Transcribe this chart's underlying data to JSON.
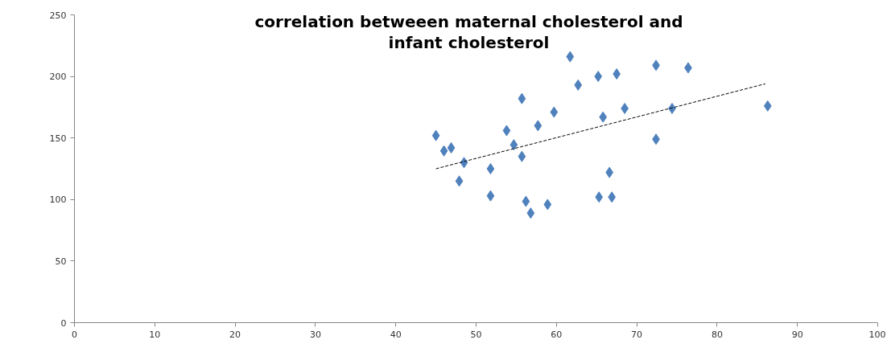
{
  "chart_data": {
    "type": "scatter",
    "title": "correlation betweeen maternal cholesterol and infant cholesterol",
    "grid": false,
    "xlim": [
      0,
      100
    ],
    "xticks": [
      0,
      10,
      20,
      30,
      40,
      50,
      60,
      70,
      80,
      90,
      100
    ],
    "ylim": [
      0,
      250
    ],
    "yticks": [
      0,
      50,
      100,
      150,
      200,
      250
    ],
    "series": [
      {
        "color": "#4f81bd",
        "marker": "diamond",
        "x": [
          45.0,
          46.0,
          46.9,
          48.5,
          47.9,
          51.8,
          51.8,
          53.8,
          54.7,
          55.7,
          55.7,
          56.2,
          56.8,
          57.7,
          58.9,
          59.7,
          61.7,
          62.7,
          65.2,
          67.5,
          65.8,
          68.5,
          66.6,
          65.3,
          66.9,
          72.4,
          72.4,
          76.4,
          74.4,
          86.3
        ],
        "values": [
          152,
          139.5,
          142,
          130,
          115,
          125,
          103,
          156,
          144.5,
          135,
          182,
          98.5,
          89,
          160,
          96,
          171,
          216,
          193,
          200,
          202,
          167,
          174,
          122,
          102,
          102,
          209,
          149,
          207,
          174,
          176
        ]
      },
      {
        "type": "line",
        "marker": "none",
        "line_style": "dashed",
        "color": "#000000",
        "x": [
          45.0,
          86.0
        ],
        "values": [
          125,
          194
        ]
      }
    ]
  }
}
